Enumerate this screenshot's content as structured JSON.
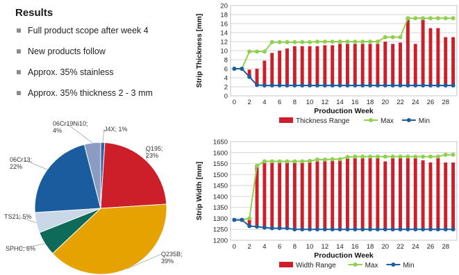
{
  "results": {
    "title": "Results",
    "items": [
      "Full product scope after week 4",
      "New products follow",
      "Approx. 35% stainless",
      "Approx. 35% thickness 2 - 3 mm"
    ]
  },
  "chart_data": [
    {
      "type": "pie",
      "slices": [
        {
          "label": "J4X; 1%",
          "value": 1,
          "color": "#3b5fa0"
        },
        {
          "label": "Q195; 23%",
          "value": 23,
          "color": "#cc1f2a"
        },
        {
          "label": "Q235B; 39%",
          "value": 39,
          "color": "#e5a200"
        },
        {
          "label": "SPHC; 6%",
          "value": 6,
          "color": "#0e6b5a"
        },
        {
          "label": "TS21; 5%",
          "value": 5,
          "color": "#c9d7e6"
        },
        {
          "label": "06Cr13; 22%",
          "value": 22,
          "color": "#1a5c9e"
        },
        {
          "label": "06Cr19Ni10; 4%",
          "value": 4,
          "color": "#8a9cc2"
        }
      ]
    },
    {
      "type": "bar",
      "ylabel": "Strip Thickness [mm]",
      "xlabel": "Production Week",
      "ylim": [
        0,
        20
      ],
      "yticks": [
        0,
        2,
        4,
        6,
        8,
        10,
        12,
        14,
        16,
        18,
        20
      ],
      "xlim": [
        0,
        29
      ],
      "xticks": [
        0,
        2,
        4,
        6,
        8,
        10,
        12,
        14,
        16,
        18,
        20,
        22,
        24,
        26,
        28
      ],
      "x": [
        0,
        1,
        2,
        3,
        4,
        5,
        6,
        7,
        8,
        9,
        10,
        11,
        12,
        13,
        14,
        15,
        16,
        17,
        18,
        19,
        20,
        21,
        22,
        23,
        24,
        25,
        26,
        27,
        28,
        29
      ],
      "series": [
        {
          "name": "Thickness Range",
          "color": "#cc1f2a",
          "kind": "range",
          "values": [
            0,
            0,
            5.8,
            6,
            7.8,
            9.5,
            10,
            10.5,
            11,
            11,
            11,
            11,
            11.2,
            11.2,
            11.5,
            11.5,
            11.5,
            11.5,
            11.5,
            11.5,
            12,
            11.5,
            11.8,
            17.2,
            11.5,
            17,
            15,
            15,
            13,
            13
          ]
        },
        {
          "name": "Max",
          "color": "#8fd14f",
          "kind": "line",
          "values": [
            6,
            6,
            9.8,
            9.8,
            9.8,
            11.9,
            11.9,
            11.9,
            11.9,
            11.9,
            11.9,
            12,
            12,
            12,
            12,
            12,
            12,
            12,
            12,
            12,
            13,
            13,
            13,
            17.2,
            17.2,
            17.2,
            17.2,
            17.2,
            17.2,
            17.2
          ]
        },
        {
          "name": "Min",
          "color": "#1f5e9e",
          "kind": "line",
          "values": [
            6,
            6,
            4.2,
            2.4,
            2.3,
            2.3,
            2.3,
            2.3,
            2.3,
            2.3,
            2.3,
            2.3,
            2.3,
            2.3,
            2.3,
            2.3,
            2.3,
            2.3,
            2.3,
            2.3,
            2.3,
            2.3,
            2.3,
            2.3,
            2.3,
            2.3,
            2.3,
            2.3,
            2.3,
            2.3
          ]
        }
      ]
    },
    {
      "type": "bar",
      "ylabel": "Strip Width [mm]",
      "xlabel": "Production Week",
      "ylim": [
        1200,
        1650
      ],
      "yticks": [
        1200,
        1250,
        1300,
        1350,
        1400,
        1450,
        1500,
        1550,
        1600,
        1650
      ],
      "xlim": [
        0,
        29
      ],
      "xticks": [
        0,
        2,
        4,
        6,
        8,
        10,
        12,
        14,
        16,
        18,
        20,
        22,
        24,
        26,
        28
      ],
      "x": [
        0,
        1,
        2,
        3,
        4,
        5,
        6,
        7,
        8,
        9,
        10,
        11,
        12,
        13,
        14,
        15,
        16,
        17,
        18,
        19,
        20,
        21,
        22,
        23,
        24,
        25,
        26,
        27,
        28,
        29
      ],
      "series": [
        {
          "name": "Width Range",
          "color": "#cc1f2a",
          "kind": "range",
          "values": [
            1290,
            1290,
            1300,
            1540,
            1555,
            1555,
            1555,
            1555,
            1555,
            1555,
            1555,
            1560,
            1562,
            1562,
            1565,
            1575,
            1575,
            1575,
            1575,
            1575,
            1560,
            1575,
            1575,
            1575,
            1575,
            1565,
            1555,
            1575,
            1555,
            1555
          ]
        },
        {
          "name": "Max",
          "color": "#8fd14f",
          "kind": "line",
          "values": [
            1293,
            1293,
            1300,
            1540,
            1560,
            1560,
            1560,
            1560,
            1560,
            1560,
            1562,
            1568,
            1568,
            1570,
            1570,
            1580,
            1582,
            1582,
            1582,
            1582,
            1582,
            1582,
            1582,
            1582,
            1582,
            1582,
            1582,
            1582,
            1590,
            1590
          ]
        },
        {
          "name": "Min",
          "color": "#1f5e9e",
          "kind": "line",
          "values": [
            1293,
            1293,
            1265,
            1262,
            1258,
            1255,
            1255,
            1255,
            1250,
            1250,
            1250,
            1250,
            1250,
            1250,
            1250,
            1250,
            1250,
            1250,
            1250,
            1250,
            1250,
            1250,
            1250,
            1250,
            1250,
            1250,
            1250,
            1250,
            1250,
            1250
          ]
        }
      ]
    }
  ]
}
